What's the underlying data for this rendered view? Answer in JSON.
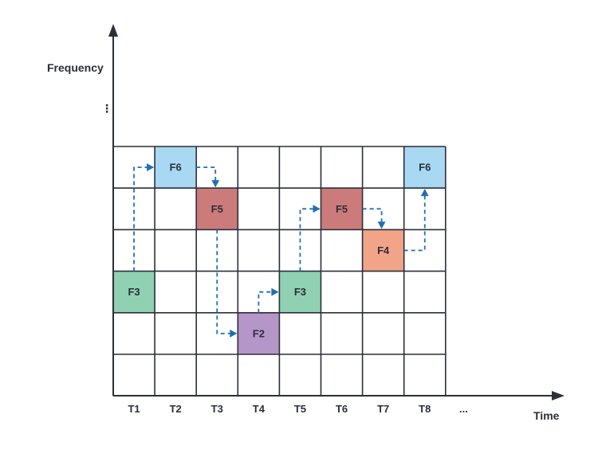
{
  "axes": {
    "y_label": "Frequency",
    "x_label": "Time",
    "y_ellipsis": "⋮",
    "x_ellipsis": "..."
  },
  "time_ticks": [
    "T1",
    "T2",
    "T3",
    "T4",
    "T5",
    "T6",
    "T7",
    "T8"
  ],
  "grid": {
    "columns": 8,
    "rows": 6
  },
  "hops": [
    {
      "label": "F3",
      "time_index": 0,
      "row_from_top": 3,
      "color": "#8fd1b2"
    },
    {
      "label": "F6",
      "time_index": 1,
      "row_from_top": 0,
      "color": "#a9d8f2"
    },
    {
      "label": "F5",
      "time_index": 2,
      "row_from_top": 1,
      "color": "#cc7b7b"
    },
    {
      "label": "F2",
      "time_index": 3,
      "row_from_top": 4,
      "color": "#b596c8"
    },
    {
      "label": "F3",
      "time_index": 4,
      "row_from_top": 3,
      "color": "#8fd1b2"
    },
    {
      "label": "F5",
      "time_index": 5,
      "row_from_top": 1,
      "color": "#cc7b7b"
    },
    {
      "label": "F4",
      "time_index": 6,
      "row_from_top": 2,
      "color": "#f2a489"
    },
    {
      "label": "F6",
      "time_index": 7,
      "row_from_top": 0,
      "color": "#a9d8f2"
    }
  ],
  "colors": {
    "axis": "#2b2f3a",
    "grid": "#2b2f3a",
    "arrow": "#1f6fb5"
  }
}
